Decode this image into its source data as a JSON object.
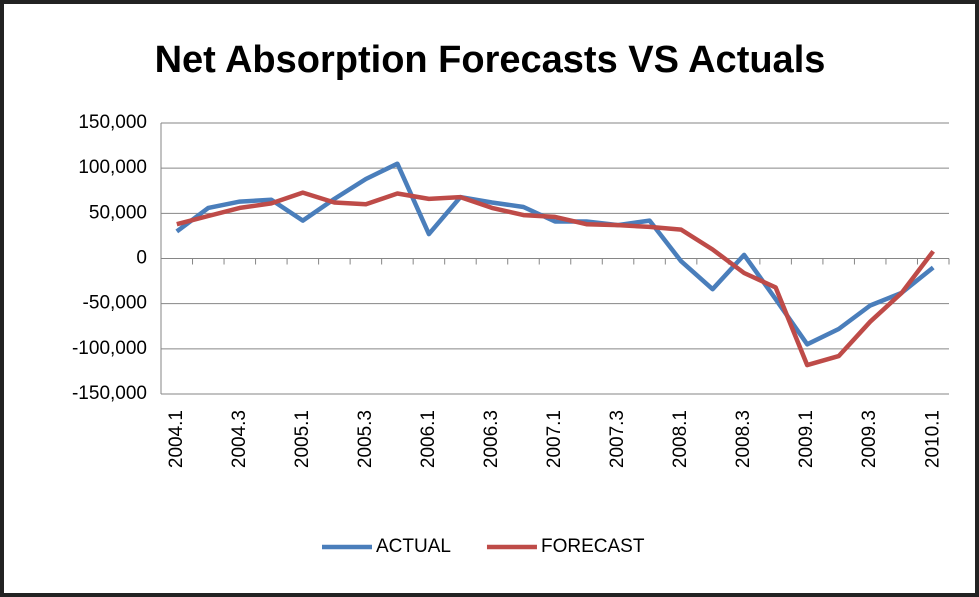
{
  "chart_data": {
    "type": "line",
    "title": "Net Absorption Forecasts VS Actuals",
    "categories": [
      "2004.1",
      null,
      "2004.3",
      null,
      "2005.1",
      null,
      "2005.3",
      null,
      "2006.1",
      null,
      "2006.3",
      null,
      "2007.1",
      null,
      "2007.3",
      null,
      "2008.1",
      null,
      "2008.3",
      null,
      "2009.1",
      null,
      "2009.3",
      null,
      "2010.1"
    ],
    "series": [
      {
        "name": "ACTUAL",
        "color": "#4a7ebb",
        "values": [
          30000,
          56000,
          63000,
          65000,
          42000,
          66000,
          88000,
          105000,
          27000,
          68000,
          62000,
          57000,
          41000,
          41000,
          37000,
          42000,
          -3000,
          -34000,
          4000,
          -45000,
          -95000,
          -78000,
          -52000,
          -38000,
          -10000
        ]
      },
      {
        "name": "FORECAST",
        "color": "#be4b48",
        "values": [
          38000,
          47000,
          56000,
          61000,
          73000,
          62000,
          60000,
          72000,
          66000,
          68000,
          56000,
          48000,
          46000,
          38000,
          37000,
          35000,
          32000,
          10000,
          -16000,
          -32000,
          -118000,
          -108000,
          -70000,
          -38000,
          8000
        ]
      }
    ],
    "ylim": [
      -150000,
      150000
    ],
    "yticks": [
      {
        "value": -150000,
        "label": "-150,000"
      },
      {
        "value": -100000,
        "label": "-100,000"
      },
      {
        "value": -50000,
        "label": "-50,000"
      },
      0,
      {
        "value": 50000,
        "label": "50,000"
      },
      {
        "value": 100000,
        "label": "100,000"
      },
      {
        "value": 150000,
        "label": "150,000"
      }
    ],
    "grid": true,
    "legend": "bottom"
  }
}
